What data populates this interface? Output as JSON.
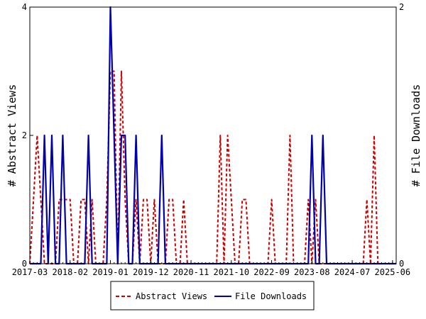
{
  "chart_data": {
    "type": "line",
    "y_left_label": "# Abstract Views",
    "y_right_label": "# File Downloads",
    "y_left_lim": [
      0,
      4
    ],
    "y_right_lim": [
      0,
      2
    ],
    "y_left_ticks": [
      "0",
      "2",
      "4"
    ],
    "y_right_ticks": [
      "0",
      "2"
    ],
    "x_ticks": [
      "2017-03",
      "2018-02",
      "2019-01",
      "2019-12",
      "2020-11",
      "2021-10",
      "2022-09",
      "2023-08",
      "2024-07",
      "2025-06"
    ],
    "x_start_month": "2017-03",
    "x_end_month": "2025-07",
    "series": [
      {
        "name": "Abstract Views",
        "axis": "left",
        "color": "#cc0000",
        "style": "dashed",
        "points": [
          [
            "2017-03",
            0
          ],
          [
            "2017-04",
            1
          ],
          [
            "2017-05",
            2
          ],
          [
            "2017-06",
            1
          ],
          [
            "2017-07",
            0
          ],
          [
            "2017-08",
            0
          ],
          [
            "2017-09",
            0
          ],
          [
            "2017-10",
            0
          ],
          [
            "2017-11",
            1
          ],
          [
            "2017-12",
            1
          ],
          [
            "2018-01",
            1
          ],
          [
            "2018-02",
            1
          ],
          [
            "2018-03",
            0
          ],
          [
            "2018-04",
            0
          ],
          [
            "2018-05",
            1
          ],
          [
            "2018-06",
            1
          ],
          [
            "2018-07",
            0
          ],
          [
            "2018-08",
            1
          ],
          [
            "2018-09",
            0
          ],
          [
            "2018-10",
            0
          ],
          [
            "2018-11",
            0
          ],
          [
            "2018-12",
            1
          ],
          [
            "2019-01",
            3
          ],
          [
            "2019-02",
            3
          ],
          [
            "2019-03",
            0
          ],
          [
            "2019-04",
            3
          ],
          [
            "2019-05",
            1
          ],
          [
            "2019-06",
            0
          ],
          [
            "2019-07",
            0
          ],
          [
            "2019-08",
            1
          ],
          [
            "2019-09",
            0
          ],
          [
            "2019-10",
            1
          ],
          [
            "2019-11",
            1
          ],
          [
            "2019-12",
            0
          ],
          [
            "2020-01",
            1
          ],
          [
            "2020-02",
            0
          ],
          [
            "2020-03",
            0
          ],
          [
            "2020-04",
            0
          ],
          [
            "2020-05",
            1
          ],
          [
            "2020-06",
            1
          ],
          [
            "2020-07",
            0
          ],
          [
            "2020-08",
            0
          ],
          [
            "2020-09",
            1
          ],
          [
            "2020-10",
            0
          ],
          [
            "2020-11",
            0
          ],
          [
            "2020-12",
            0
          ],
          [
            "2021-01",
            0
          ],
          [
            "2021-02",
            0
          ],
          [
            "2021-03",
            0
          ],
          [
            "2021-04",
            0
          ],
          [
            "2021-05",
            0
          ],
          [
            "2021-06",
            0
          ],
          [
            "2021-07",
            2
          ],
          [
            "2021-08",
            0
          ],
          [
            "2021-09",
            2
          ],
          [
            "2021-10",
            1
          ],
          [
            "2021-11",
            0
          ],
          [
            "2021-12",
            0
          ],
          [
            "2022-01",
            1
          ],
          [
            "2022-02",
            1
          ],
          [
            "2022-03",
            0
          ],
          [
            "2022-04",
            0
          ],
          [
            "2022-05",
            0
          ],
          [
            "2022-06",
            0
          ],
          [
            "2022-07",
            0
          ],
          [
            "2022-08",
            0
          ],
          [
            "2022-09",
            1
          ],
          [
            "2022-10",
            0
          ],
          [
            "2022-11",
            0
          ],
          [
            "2022-12",
            0
          ],
          [
            "2023-01",
            0
          ],
          [
            "2023-02",
            2
          ],
          [
            "2023-03",
            0
          ],
          [
            "2023-04",
            0
          ],
          [
            "2023-05",
            0
          ],
          [
            "2023-06",
            0
          ],
          [
            "2023-07",
            1
          ],
          [
            "2023-08",
            0
          ],
          [
            "2023-09",
            1
          ],
          [
            "2023-10",
            0
          ],
          [
            "2023-11",
            0
          ],
          [
            "2023-12",
            0
          ],
          [
            "2024-01",
            0
          ],
          [
            "2024-02",
            0
          ],
          [
            "2024-03",
            0
          ],
          [
            "2024-04",
            0
          ],
          [
            "2024-05",
            0
          ],
          [
            "2024-06",
            0
          ],
          [
            "2024-07",
            0
          ],
          [
            "2024-08",
            0
          ],
          [
            "2024-09",
            0
          ],
          [
            "2024-10",
            0
          ],
          [
            "2024-11",
            1
          ],
          [
            "2024-12",
            0
          ],
          [
            "2025-01",
            2
          ],
          [
            "2025-02",
            0
          ],
          [
            "2025-03",
            0
          ],
          [
            "2025-04",
            0
          ],
          [
            "2025-05",
            0
          ],
          [
            "2025-06",
            0
          ],
          [
            "2025-07",
            0
          ]
        ]
      },
      {
        "name": "File Downloads",
        "axis": "right",
        "color": "#0000aa",
        "style": "solid",
        "points": [
          [
            "2017-03",
            0
          ],
          [
            "2017-04",
            0
          ],
          [
            "2017-05",
            0
          ],
          [
            "2017-06",
            0
          ],
          [
            "2017-07",
            1
          ],
          [
            "2017-08",
            0
          ],
          [
            "2017-09",
            1
          ],
          [
            "2017-10",
            0
          ],
          [
            "2017-11",
            0
          ],
          [
            "2017-12",
            1
          ],
          [
            "2018-01",
            0
          ],
          [
            "2018-02",
            0
          ],
          [
            "2018-03",
            0
          ],
          [
            "2018-04",
            0
          ],
          [
            "2018-05",
            0
          ],
          [
            "2018-06",
            0
          ],
          [
            "2018-07",
            1
          ],
          [
            "2018-08",
            0
          ],
          [
            "2018-09",
            0
          ],
          [
            "2018-10",
            0
          ],
          [
            "2018-11",
            0
          ],
          [
            "2018-12",
            0
          ],
          [
            "2019-01",
            2
          ],
          [
            "2019-02",
            1
          ],
          [
            "2019-03",
            0
          ],
          [
            "2019-04",
            1
          ],
          [
            "2019-05",
            1
          ],
          [
            "2019-06",
            0
          ],
          [
            "2019-07",
            0
          ],
          [
            "2019-08",
            1
          ],
          [
            "2019-09",
            0
          ],
          [
            "2019-10",
            0
          ],
          [
            "2019-11",
            0
          ],
          [
            "2019-12",
            0
          ],
          [
            "2020-01",
            0
          ],
          [
            "2020-02",
            0
          ],
          [
            "2020-03",
            1
          ],
          [
            "2020-04",
            0
          ],
          [
            "2020-05",
            0
          ],
          [
            "2020-06",
            0
          ],
          [
            "2020-07",
            0
          ],
          [
            "2020-08",
            0
          ],
          [
            "2020-09",
            0
          ],
          [
            "2020-10",
            0
          ],
          [
            "2020-11",
            0
          ],
          [
            "2020-12",
            0
          ],
          [
            "2021-01",
            0
          ],
          [
            "2021-02",
            0
          ],
          [
            "2021-03",
            0
          ],
          [
            "2021-04",
            0
          ],
          [
            "2021-05",
            0
          ],
          [
            "2021-06",
            0
          ],
          [
            "2021-07",
            0
          ],
          [
            "2021-08",
            0
          ],
          [
            "2021-09",
            0
          ],
          [
            "2021-10",
            0
          ],
          [
            "2021-11",
            0
          ],
          [
            "2021-12",
            0
          ],
          [
            "2022-01",
            0
          ],
          [
            "2022-02",
            0
          ],
          [
            "2022-03",
            0
          ],
          [
            "2022-04",
            0
          ],
          [
            "2022-05",
            0
          ],
          [
            "2022-06",
            0
          ],
          [
            "2022-07",
            0
          ],
          [
            "2022-08",
            0
          ],
          [
            "2022-09",
            0
          ],
          [
            "2022-10",
            0
          ],
          [
            "2022-11",
            0
          ],
          [
            "2022-12",
            0
          ],
          [
            "2023-01",
            0
          ],
          [
            "2023-02",
            0
          ],
          [
            "2023-03",
            0
          ],
          [
            "2023-04",
            0
          ],
          [
            "2023-05",
            0
          ],
          [
            "2023-06",
            0
          ],
          [
            "2023-07",
            0
          ],
          [
            "2023-08",
            1
          ],
          [
            "2023-09",
            0
          ],
          [
            "2023-10",
            0
          ],
          [
            "2023-11",
            1
          ],
          [
            "2023-12",
            0
          ],
          [
            "2024-01",
            0
          ],
          [
            "2024-02",
            0
          ],
          [
            "2024-03",
            0
          ],
          [
            "2024-04",
            0
          ],
          [
            "2024-05",
            0
          ],
          [
            "2024-06",
            0
          ],
          [
            "2024-07",
            0
          ],
          [
            "2024-08",
            0
          ],
          [
            "2024-09",
            0
          ],
          [
            "2024-10",
            0
          ],
          [
            "2024-11",
            0
          ],
          [
            "2024-12",
            0
          ],
          [
            "2025-01",
            0
          ],
          [
            "2025-02",
            0
          ],
          [
            "2025-03",
            0
          ],
          [
            "2025-04",
            0
          ],
          [
            "2025-05",
            0
          ],
          [
            "2025-06",
            0
          ],
          [
            "2025-07",
            0
          ]
        ]
      }
    ],
    "legend_position": "bottom-center",
    "grid": false
  }
}
